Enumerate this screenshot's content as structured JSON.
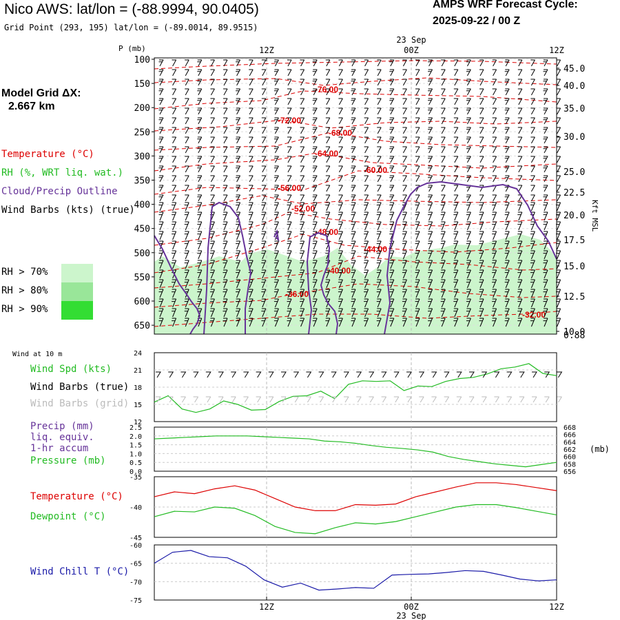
{
  "header": {
    "title": "Nico AWS:  lat/lon = (-88.9994, 90.0405)",
    "grid_point": "Grid Point (293, 195) lat/lon = (-89.0014, 89.9515)",
    "forecast_line1": "AMPS WRF Forecast Cycle:",
    "forecast_line2": "2025-09-22 / 00  Z"
  },
  "left_panel": {
    "model_grid_line1": "Model Grid ΔX:",
    "model_grid_line2": "2.667 km",
    "legend": {
      "temperature": "Temperature (°C)",
      "rh": "RH (%, WRT liq. wat.)",
      "cloud": "Cloud/Precip Outline",
      "wind": "Wind Barbs (kts) (true)"
    },
    "rh_levels": [
      {
        "label": "RH > 70%",
        "color": "#ccf5cc"
      },
      {
        "label": "RH > 80%",
        "color": "#99e699"
      },
      {
        "label": "RH > 90%",
        "color": "#33dd33"
      }
    ]
  },
  "time_axis": {
    "ticks": [
      "12Z",
      "00Z",
      "12Z"
    ],
    "date_label": "23 Sep"
  },
  "colors": {
    "temperature": "#dd0000",
    "rh_fill": "#ccf5cc",
    "cloud_outline": "#663399",
    "wind_spd": "#22bb22",
    "dewpoint": "#22bb22",
    "wind_chill": "#1a1aa8",
    "grid": "#bbbbbb"
  },
  "chart_data": [
    {
      "type": "line",
      "title": "Time-height cross section",
      "ylabel": "P (mb)",
      "y_right_label": "Kft MSL",
      "ylim": [
        660,
        95
      ],
      "pressure_ticks": [
        "100",
        "150",
        "200",
        "250",
        "300",
        "350",
        "400",
        "450",
        "500",
        "550",
        "600",
        "650"
      ],
      "height_ticks_kft": [
        "45.0",
        "40.0",
        "35.0",
        "30.0",
        "25.0",
        "22.5",
        "20.0",
        "17.5",
        "15.0",
        "12.5",
        "10.0"
      ],
      "height_extra_label": "0.88",
      "temperature_contour_labels": [
        "-76.00",
        "-72.00",
        "-68.00",
        "-64.00",
        "-60.00",
        "-56.00",
        "-52.00",
        "-48.00",
        "-44.00",
        "-40.00",
        "-36.00",
        "-32.00"
      ]
    },
    {
      "type": "line",
      "title": "Wind at 10 m",
      "series": [
        {
          "name": "Wind Spd (kts)",
          "values": [
            15.4,
            16.5,
            14.2,
            13.6,
            14.2,
            15.6,
            15.0,
            14.0,
            14.1,
            15.5,
            16.4,
            16.5,
            17.3,
            16.0,
            18.5,
            19.1,
            19.0,
            19.1,
            17.4,
            18.2,
            18.1,
            19.0,
            19.5,
            19.7,
            20.3,
            21.2,
            21.5,
            22.1,
            20.4,
            20.0
          ]
        }
      ],
      "legend": [
        "Wind Spd (kts)",
        "Wind Barbs (true)",
        "Wind Barbs (grid)"
      ],
      "y_ticks": [
        "24",
        "21",
        "18",
        "15",
        "12"
      ],
      "ylim": [
        12,
        24
      ]
    },
    {
      "type": "line",
      "title": "Precip / Pressure",
      "series": [
        {
          "name": "Pressure (mb)",
          "values": [
            664.8,
            665.0,
            665.2,
            665.4,
            665.6,
            665.6,
            665.6,
            665.4,
            665.2,
            665.0,
            664.8,
            664.2,
            664.0,
            663.6,
            663.0,
            662.5,
            662.2,
            661.8,
            661.2,
            660.0,
            659.2,
            658.6,
            658.0,
            657.6,
            657.2,
            657.8,
            658.4
          ]
        }
      ],
      "legend": [
        "Precip (mm)",
        "liq. equiv.",
        "1-hr accum",
        "Pressure (mb)"
      ],
      "precip_ticks": [
        "2.5",
        "2.0",
        "1.5",
        "1.0",
        "0.5",
        "0.0"
      ],
      "pressure_ticks": [
        "668",
        "666",
        "664",
        "662",
        "660",
        "658",
        "656"
      ],
      "pressure_unit": "(mb)",
      "ylim": [
        656,
        668
      ]
    },
    {
      "type": "line",
      "title": "Temperature / Dewpoint",
      "series": [
        {
          "name": "Temperature (°C)",
          "values": [
            -38.3,
            -37.5,
            -37.8,
            -37.0,
            -36.5,
            -37.2,
            -38.6,
            -40.0,
            -40.6,
            -40.6,
            -39.6,
            -39.7,
            -39.5,
            -38.3,
            -37.5,
            -36.7,
            -36.0,
            -36.0,
            -36.3,
            -36.8,
            -37.3
          ]
        },
        {
          "name": "Dewpoint (°C)",
          "values": [
            -41.6,
            -40.7,
            -40.8,
            -40.0,
            -40.2,
            -41.4,
            -43.2,
            -44.2,
            -44.4,
            -43.4,
            -42.6,
            -42.8,
            -42.4,
            -41.6,
            -40.8,
            -40.0,
            -39.6,
            -39.6,
            -40.1,
            -40.7,
            -41.3
          ]
        }
      ],
      "y_ticks": [
        "-35",
        "-40",
        "-45"
      ],
      "ylim": [
        -45,
        -35
      ]
    },
    {
      "type": "line",
      "title": "Wind Chill",
      "series": [
        {
          "name": "Wind Chill T (°C)",
          "values": [
            -65.0,
            -62.0,
            -61.5,
            -63.2,
            -63.5,
            -65.8,
            -69.5,
            -71.5,
            -70.4,
            -72.3,
            -72.0,
            -71.6,
            -71.8,
            -68.2,
            -68.0,
            -67.9,
            -67.5,
            -67.0,
            -67.2,
            -68.2,
            -69.3,
            -69.8,
            -69.5
          ]
        }
      ],
      "y_ticks": [
        "-60",
        "-65",
        "-70",
        "-75"
      ],
      "ylim": [
        -75,
        -60
      ]
    }
  ]
}
